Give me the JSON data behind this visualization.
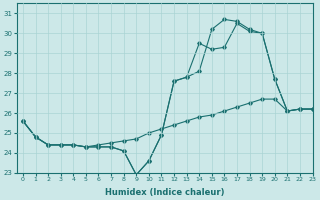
{
  "xlabel": "Humidex (Indice chaleur)",
  "ylabel": "",
  "background_color": "#cce8e8",
  "grid_color": "#aad4d4",
  "line_color": "#1a7070",
  "xlim": [
    -0.5,
    23
  ],
  "ylim": [
    23,
    31.5
  ],
  "xticks": [
    0,
    1,
    2,
    3,
    4,
    5,
    6,
    7,
    8,
    9,
    10,
    11,
    12,
    13,
    14,
    15,
    16,
    17,
    18,
    19,
    20,
    21,
    22,
    23
  ],
  "yticks": [
    23,
    24,
    25,
    26,
    27,
    28,
    29,
    30,
    31
  ],
  "series": [
    [
      25.6,
      24.8,
      24.4,
      24.4,
      24.4,
      24.3,
      24.3,
      24.3,
      24.1,
      22.9,
      23.6,
      24.9,
      27.6,
      27.8,
      28.1,
      30.2,
      30.7,
      30.6,
      30.2,
      30.0,
      27.7,
      26.1,
      26.2,
      26.2
    ],
    [
      25.6,
      24.8,
      24.4,
      24.4,
      24.4,
      24.3,
      24.3,
      24.3,
      24.1,
      22.9,
      23.6,
      24.9,
      27.6,
      27.8,
      29.5,
      29.2,
      29.3,
      30.5,
      30.1,
      30.0,
      27.7,
      26.1,
      26.2,
      26.2
    ],
    [
      25.6,
      24.8,
      24.4,
      24.4,
      24.4,
      24.3,
      24.4,
      24.5,
      24.6,
      24.7,
      25.0,
      25.2,
      25.4,
      25.6,
      25.8,
      25.9,
      26.1,
      26.3,
      26.5,
      26.7,
      26.7,
      26.1,
      26.2,
      26.2
    ]
  ]
}
